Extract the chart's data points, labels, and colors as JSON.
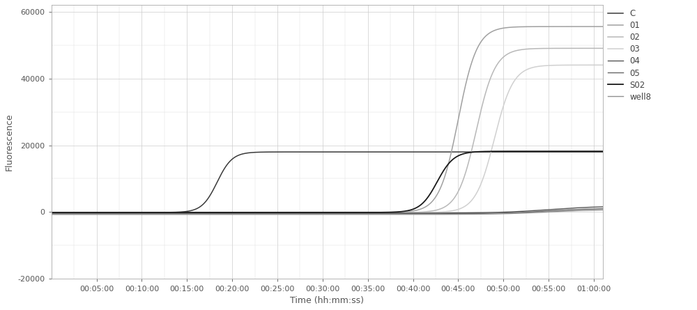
{
  "xlabel": "Time (hh:mm:ss)",
  "ylabel": "Fluorescence",
  "ylim": [
    -20000,
    62000
  ],
  "xlim": [
    0,
    3660
  ],
  "yticks": [
    -20000,
    0,
    20000,
    40000,
    60000
  ],
  "xticks": [
    300,
    600,
    900,
    1200,
    1500,
    1800,
    2100,
    2400,
    2700,
    3000,
    3300,
    3600
  ],
  "xtick_labels": [
    "00:05:00",
    "00:10:00",
    "00:15:00",
    "00:20:00",
    "00:25:00",
    "00:30:00",
    "00:35:00",
    "00:40:00",
    "00:45:00",
    "00:50:00",
    "00:55:00",
    "01:00:00"
  ],
  "background_color": "#ffffff",
  "grid_color": "#cccccc",
  "curves": [
    {
      "label": "C",
      "color": "#3a3a3a",
      "linewidth": 1.1,
      "baseline": -100,
      "plateau": 18000,
      "inflection": 1100,
      "steepness": 0.02
    },
    {
      "label": "01",
      "color": "#a0a0a0",
      "linewidth": 1.1,
      "baseline": -100,
      "plateau": 55500,
      "inflection": 2700,
      "steepness": 0.016
    },
    {
      "label": "02",
      "color": "#b8b8b8",
      "linewidth": 1.1,
      "baseline": -100,
      "plateau": 49000,
      "inflection": 2820,
      "steepness": 0.016
    },
    {
      "label": "03",
      "color": "#d0d0d0",
      "linewidth": 1.1,
      "baseline": -100,
      "plateau": 44000,
      "inflection": 2940,
      "steepness": 0.016
    },
    {
      "label": "04",
      "color": "#555555",
      "linewidth": 1.0,
      "baseline": -300,
      "plateau": 1800,
      "inflection": 3300,
      "steepness": 0.006
    },
    {
      "label": "05",
      "color": "#666666",
      "linewidth": 1.0,
      "baseline": -500,
      "plateau": 1200,
      "inflection": 3300,
      "steepness": 0.006
    },
    {
      "label": "S02",
      "color": "#1a1a1a",
      "linewidth": 1.3,
      "baseline": -100,
      "plateau": 18200,
      "inflection": 2560,
      "steepness": 0.018
    },
    {
      "label": "well8",
      "color": "#909090",
      "linewidth": 1.0,
      "baseline": -700,
      "plateau": 800,
      "inflection": 3300,
      "steepness": 0.006
    }
  ]
}
